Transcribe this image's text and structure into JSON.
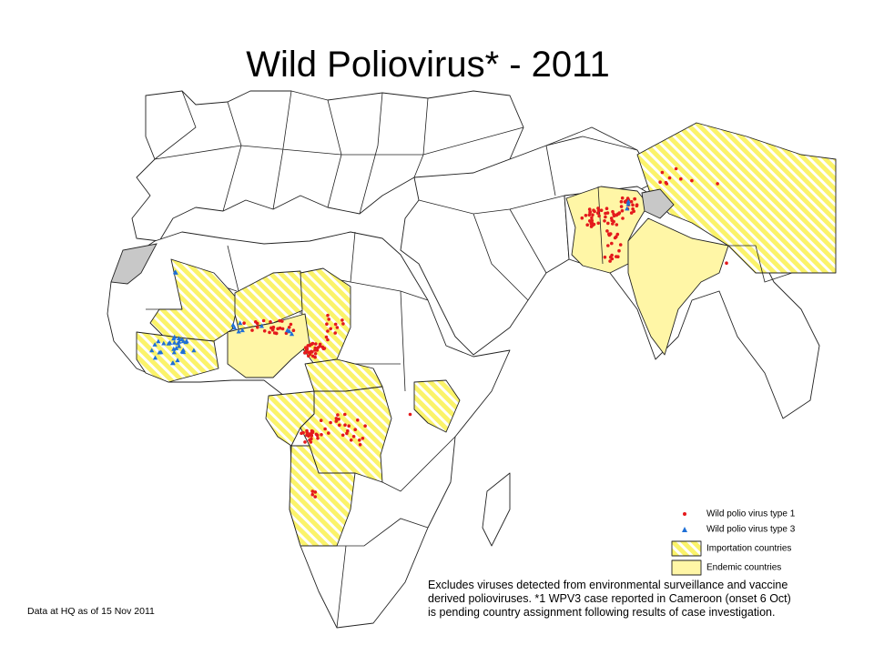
{
  "header": {
    "title": "Wild Poliovirus* - 2011"
  },
  "legend": {
    "items": [
      {
        "label": "Wild polio virus type 1"
      },
      {
        "label": "Wild polio virus type 3"
      },
      {
        "label": "Importation countries"
      },
      {
        "label": "Endemic countries"
      }
    ]
  },
  "footnote": {
    "lines": [
      "Excludes viruses detected from environmental surveillance and vaccine",
      "derived polioviruses. *1 WPV3 case reported in Cameroon (onset 6 Oct)",
      "is pending country assignment following results of case investigation."
    ]
  },
  "data_note": "Data at HQ as of 15 Nov 2011"
}
